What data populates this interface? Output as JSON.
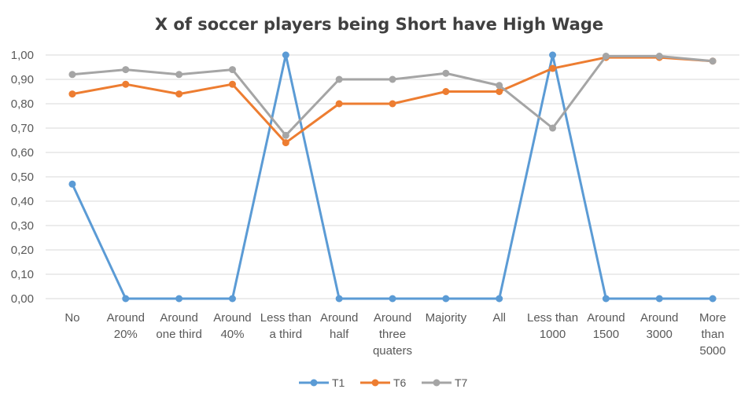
{
  "chart_data": {
    "type": "line",
    "title": "X of soccer players being Short have High Wage",
    "categories": [
      [
        "No"
      ],
      [
        "Around",
        "20%"
      ],
      [
        "Around",
        "one third"
      ],
      [
        "Around",
        "40%"
      ],
      [
        "Less than",
        "a third"
      ],
      [
        "Around",
        "half"
      ],
      [
        "Around",
        "three",
        "quaters"
      ],
      [
        "Majority"
      ],
      [
        "All"
      ],
      [
        "Less than",
        "1000"
      ],
      [
        "Around",
        "1500"
      ],
      [
        "Around",
        "3000"
      ],
      [
        "More",
        "than",
        "5000"
      ]
    ],
    "ylim": [
      0,
      1
    ],
    "ytick_labels": [
      "0,00",
      "0,10",
      "0,20",
      "0,30",
      "0,40",
      "0,50",
      "0,60",
      "0,70",
      "0,80",
      "0,90",
      "1,00"
    ],
    "grid": true,
    "legend_position": "bottom",
    "series": [
      {
        "name": "T1",
        "color": "#5b9bd5",
        "values": [
          0.47,
          0,
          0,
          0,
          1.0,
          0,
          0,
          0,
          0,
          1.0,
          0,
          0,
          0
        ]
      },
      {
        "name": "T6",
        "color": "#ed7d31",
        "values": [
          0.84,
          0.88,
          0.84,
          0.88,
          0.64,
          0.8,
          0.8,
          0.85,
          0.85,
          0.945,
          0.99,
          0.99,
          0.975
        ]
      },
      {
        "name": "T7",
        "color": "#a5a5a5",
        "values": [
          0.92,
          0.94,
          0.92,
          0.94,
          0.67,
          0.9,
          0.9,
          0.925,
          0.875,
          0.7,
          0.995,
          0.995,
          0.975
        ]
      }
    ]
  }
}
